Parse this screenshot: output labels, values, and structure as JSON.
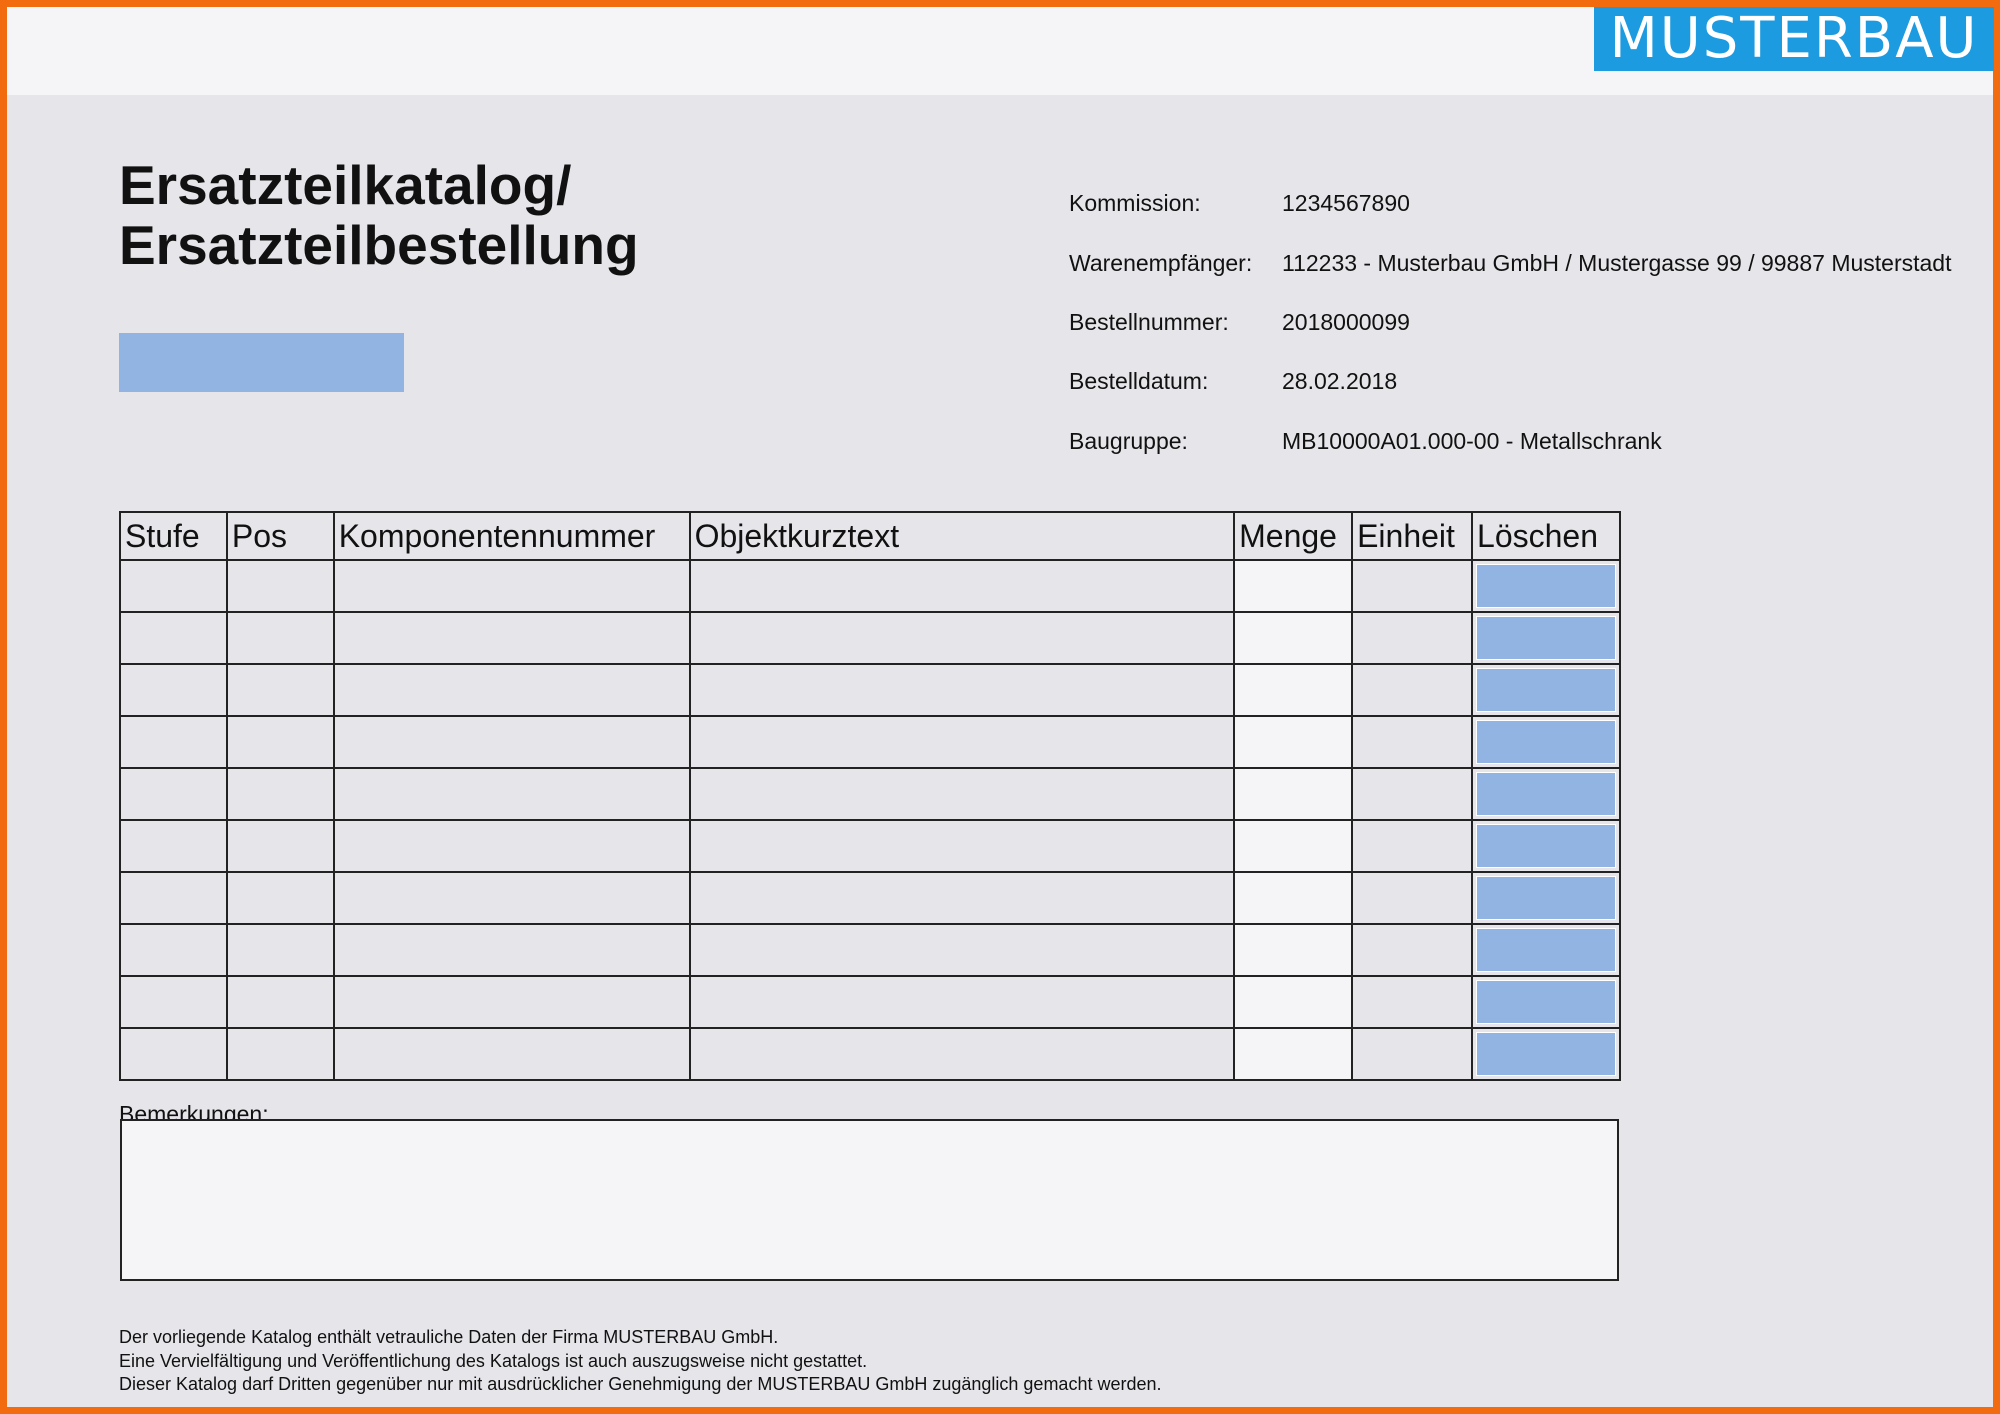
{
  "logo": "MUSTERBAU",
  "title_line1": "Ersatzteilkatalog/",
  "title_line2": "Ersatzteilbestellung",
  "info": [
    {
      "label": "Kommission:",
      "value": "1234567890"
    },
    {
      "label": "Warenempfänger:",
      "value": "112233 - Musterbau GmbH / Mustergasse 99 / 99887 Musterstadt"
    },
    {
      "label": "Bestellnummer:",
      "value": "2018000099"
    },
    {
      "label": "Bestelldatum:",
      "value": "28.02.2018"
    },
    {
      "label": "Baugruppe:",
      "value": "MB10000A01.000-00 - Metallschrank"
    }
  ],
  "table": {
    "headers": [
      "Stufe",
      "Pos",
      "Komponentennummer",
      "Objektkurztext",
      "Menge",
      "Einheit",
      "Löschen"
    ],
    "row_count": 10
  },
  "remarks_label": "Bemerkungen:",
  "footer": [
    "Der vorliegende Katalog enthält vetrauliche Daten der Firma MUSTERBAU GmbH.",
    "Eine Vervielfältigung und Veröffentlichung des Katalogs ist auch auszugsweise nicht gestattet.",
    "Dieser Katalog darf Dritten gegenüber nur mit ausdrücklicher Genehmigung der MUSTERBAU GmbH zugänglich gemacht werden."
  ],
  "colors": {
    "border": "#f26b0f",
    "logo_bg": "#1d9be0",
    "button": "#92b4e3"
  }
}
